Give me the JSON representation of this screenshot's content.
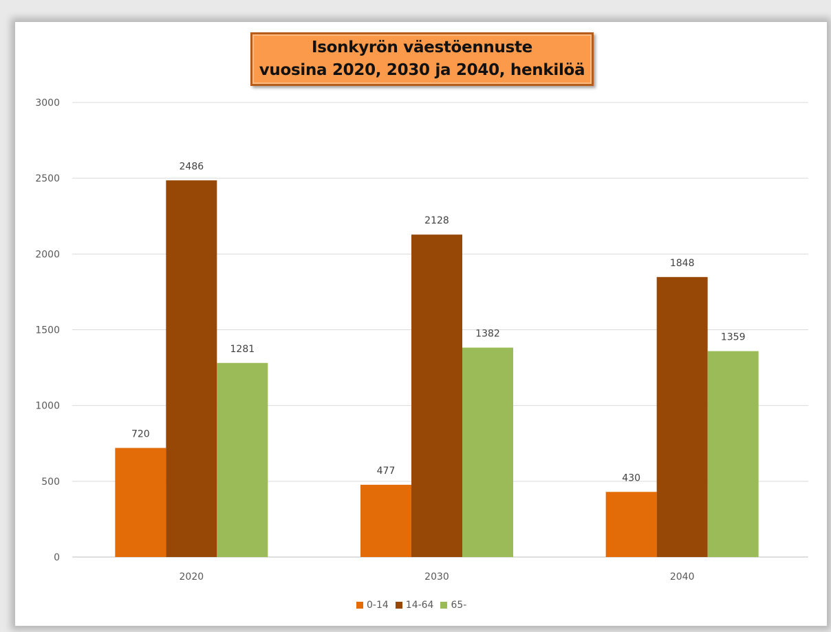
{
  "chart_data": {
    "type": "bar",
    "title_lines": [
      "Isonkyrön väestöennuste",
      "vuosina 2020, 2030 ja 2040, henkilöä"
    ],
    "categories": [
      "2020",
      "2030",
      "2040"
    ],
    "series": [
      {
        "name": "0-14",
        "color": "#e36c09",
        "values": [
          720,
          477,
          430
        ]
      },
      {
        "name": "14-64",
        "color": "#974706",
        "values": [
          2486,
          2128,
          1848
        ]
      },
      {
        "name": "65-",
        "color": "#9bbb59",
        "values": [
          1281,
          1382,
          1359
        ]
      }
    ],
    "ylim": [
      0,
      3000
    ],
    "yticks": [
      0,
      500,
      1000,
      1500,
      2000,
      2500,
      3000
    ],
    "grid": true,
    "legend_position": "bottom",
    "data_labels": true
  }
}
